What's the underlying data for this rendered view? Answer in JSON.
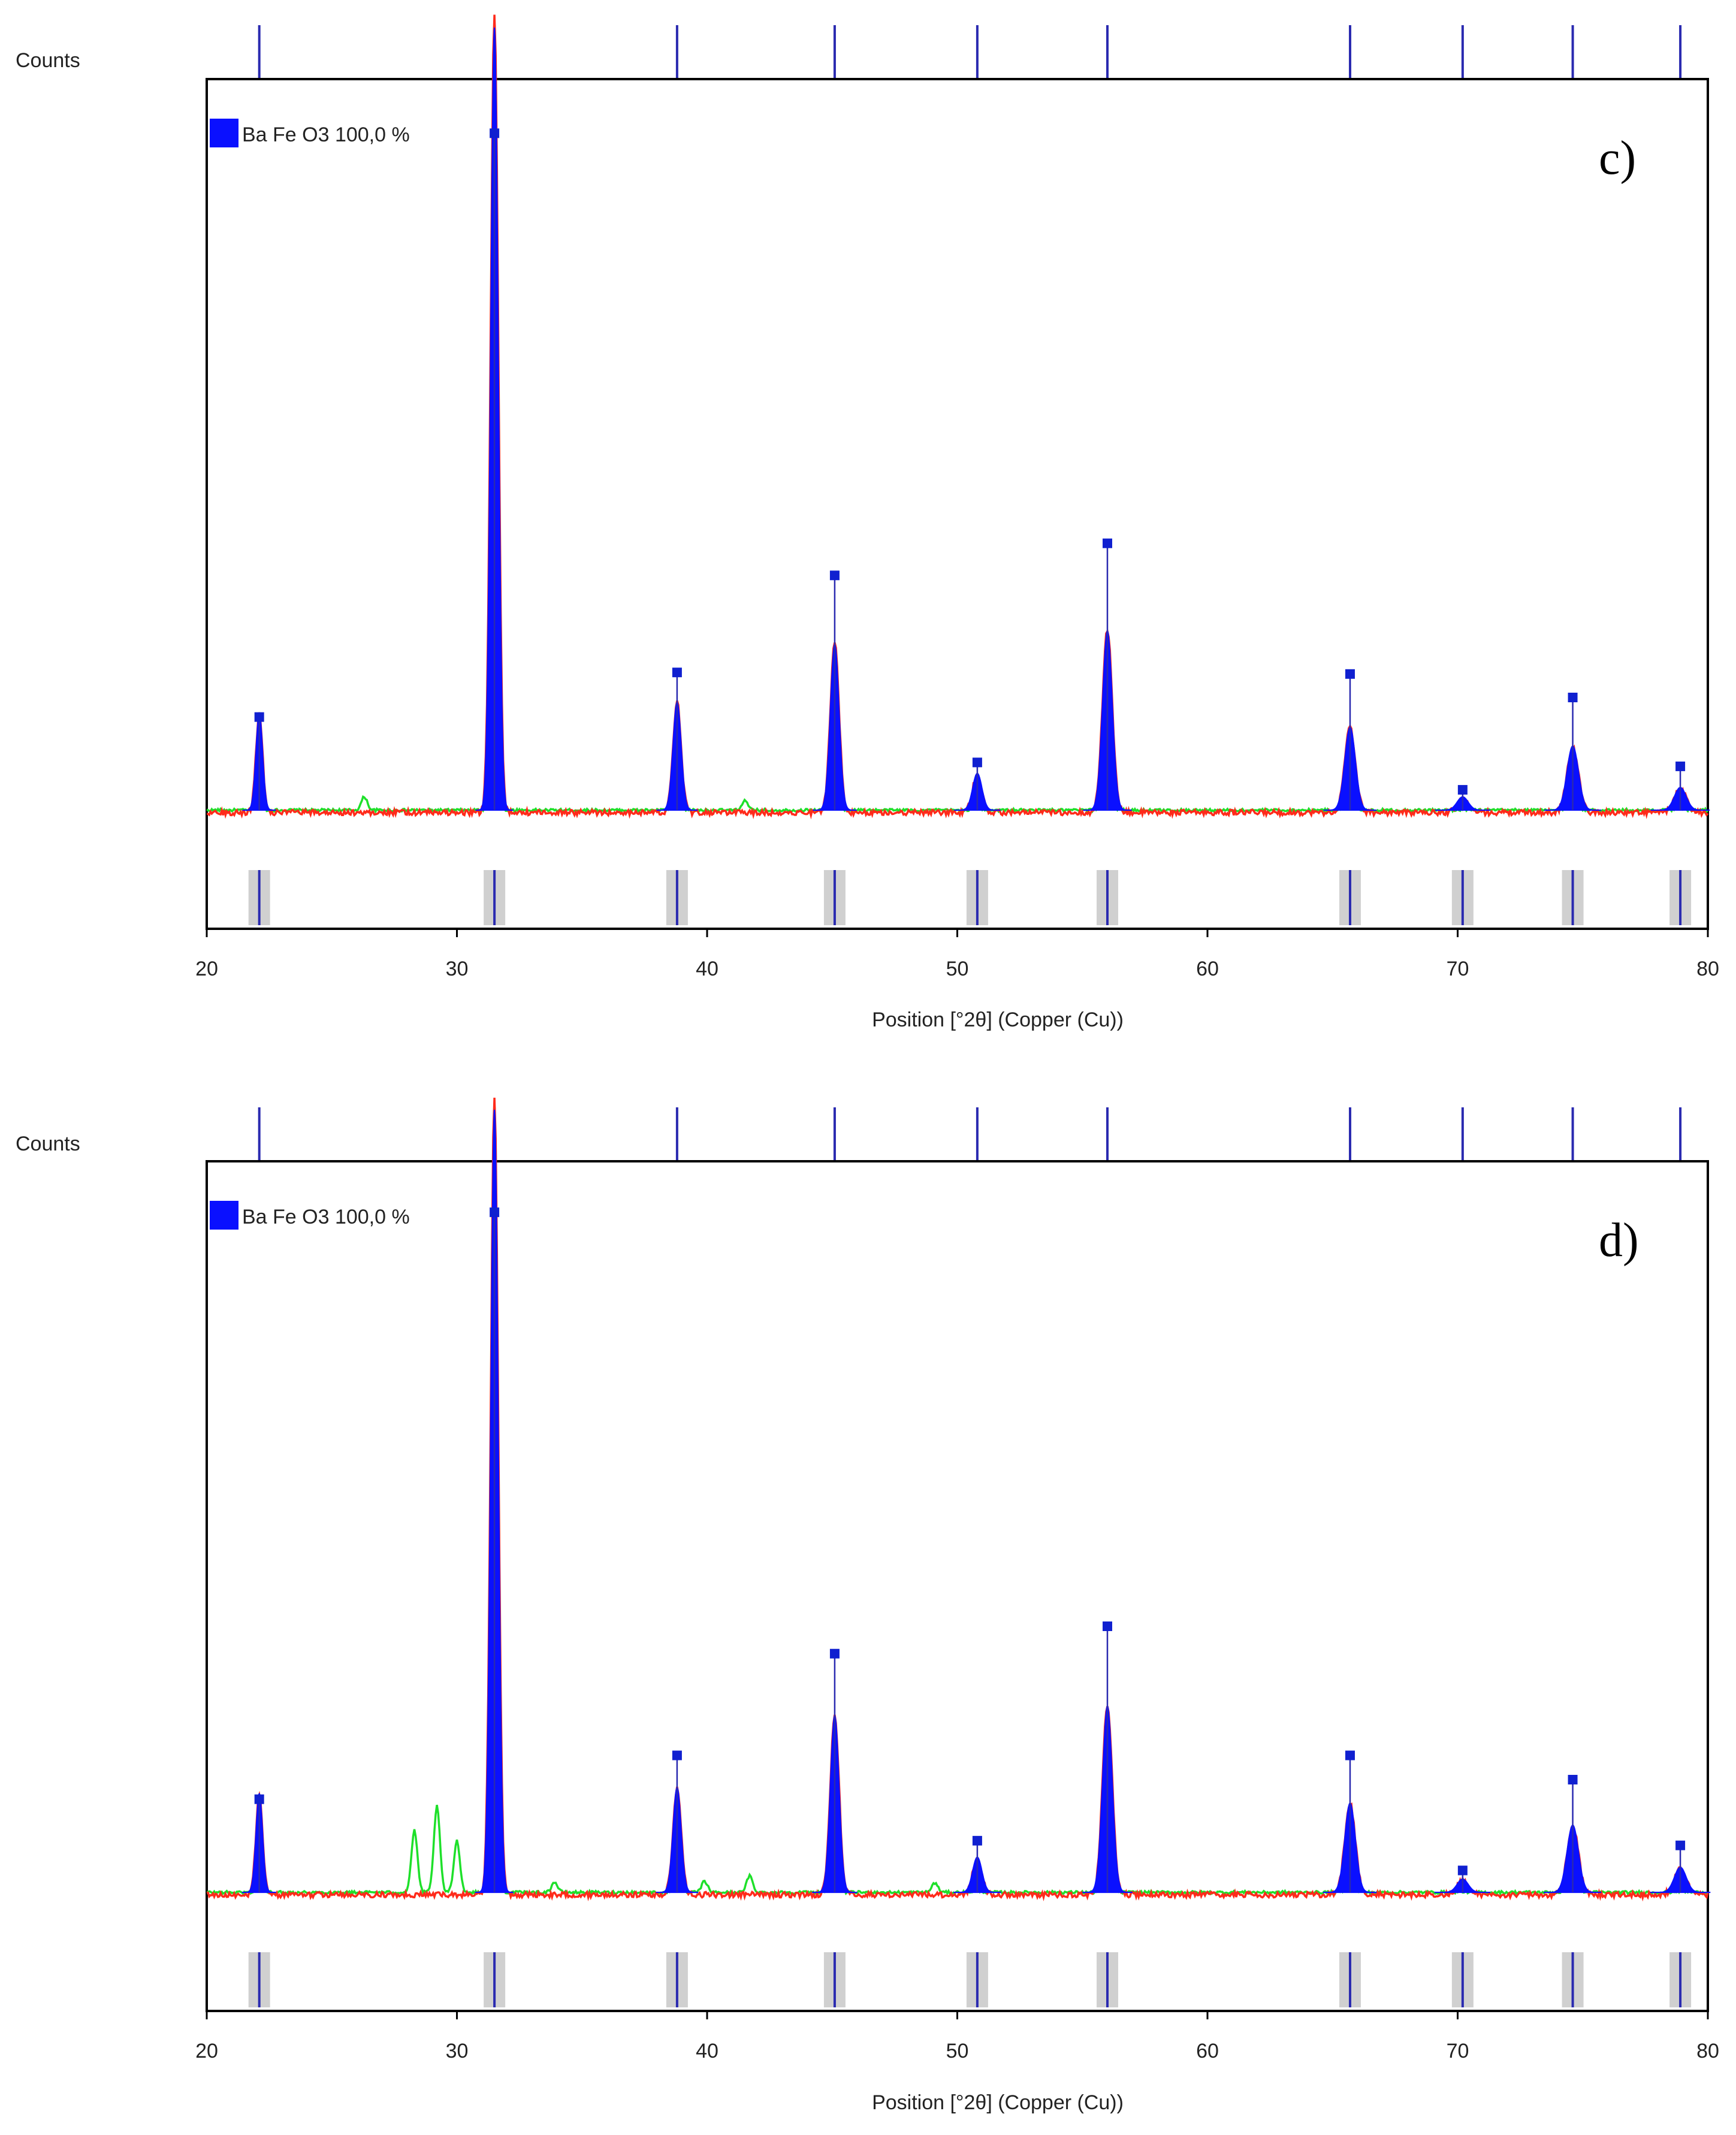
{
  "figure": {
    "colors": {
      "calculated": "#ff2a1a",
      "difference": "#1ee02a",
      "phase": "#0a10ff",
      "ref_line": "#2a2ab0",
      "band": "#c8c8c8"
    }
  },
  "chart_data": [
    {
      "type": "line",
      "panel_label": "c)",
      "ylabel": "Counts",
      "xlabel": "Position [°2θ] (Copper (Cu))",
      "xlim": [
        20,
        80
      ],
      "xticks": [
        "20",
        "30",
        "40",
        "50",
        "60",
        "70",
        "80"
      ],
      "ylim": [
        0,
        100
      ],
      "legend": "Ba Fe O3 100,0 %",
      "legend_position": "top-left",
      "baseline": 7.5,
      "reference_positions": [
        22.1,
        31.5,
        38.8,
        45.1,
        50.8,
        56.0,
        65.7,
        70.2,
        74.6,
        78.9
      ],
      "reference_markers": [
        19.4,
        94.0,
        25.1,
        37.5,
        13.6,
        41.6,
        24.9,
        10.1,
        21.9,
        13.1
      ],
      "peaks": [
        {
          "x": 22.1,
          "height": 12.4
        },
        {
          "x": 31.5,
          "height": 100.0
        },
        {
          "x": 38.8,
          "height": 13.8
        },
        {
          "x": 45.1,
          "height": 21.2
        },
        {
          "x": 50.8,
          "height": 4.7
        },
        {
          "x": 56.0,
          "height": 22.9
        },
        {
          "x": 65.7,
          "height": 10.6
        },
        {
          "x": 70.2,
          "height": 1.7
        },
        {
          "x": 74.6,
          "height": 8.2
        },
        {
          "x": 78.9,
          "height": 2.9
        }
      ],
      "green_impurity_peaks": [
        {
          "x": 26.3,
          "height": 1.7
        },
        {
          "x": 41.5,
          "height": 1.2
        }
      ]
    },
    {
      "type": "line",
      "panel_label": "d)",
      "ylabel": "Counts",
      "xlabel": "Position [°2θ] (Copper (Cu))",
      "xlim": [
        20,
        80
      ],
      "xticks": [
        "20",
        "30",
        "40",
        "50",
        "60",
        "70",
        "80"
      ],
      "ylim": [
        0,
        100
      ],
      "legend": "Ba Fe O3 100,0 %",
      "legend_position": "top-left",
      "baseline": 7.5,
      "reference_positions": [
        22.1,
        31.5,
        38.8,
        45.1,
        50.8,
        56.0,
        65.7,
        70.2,
        74.6,
        78.9
      ],
      "reference_markers": [
        19.4,
        94.4,
        25.0,
        38.0,
        14.1,
        41.5,
        25.0,
        10.3,
        21.9,
        13.5
      ],
      "peaks": [
        {
          "x": 22.1,
          "height": 12.6
        },
        {
          "x": 31.5,
          "height": 100.0
        },
        {
          "x": 38.8,
          "height": 13.4
        },
        {
          "x": 45.1,
          "height": 22.6
        },
        {
          "x": 50.8,
          "height": 4.5
        },
        {
          "x": 56.0,
          "height": 23.8
        },
        {
          "x": 65.7,
          "height": 11.4
        },
        {
          "x": 70.2,
          "height": 1.7
        },
        {
          "x": 74.6,
          "height": 8.6
        },
        {
          "x": 78.9,
          "height": 3.2
        }
      ],
      "green_impurity_peaks": [
        {
          "x": 28.3,
          "height": 7.9
        },
        {
          "x": 29.2,
          "height": 11.0
        },
        {
          "x": 30.0,
          "height": 6.6
        },
        {
          "x": 33.9,
          "height": 1.3
        },
        {
          "x": 39.9,
          "height": 1.4
        },
        {
          "x": 41.7,
          "height": 2.1
        },
        {
          "x": 49.1,
          "height": 1.2
        }
      ]
    }
  ]
}
